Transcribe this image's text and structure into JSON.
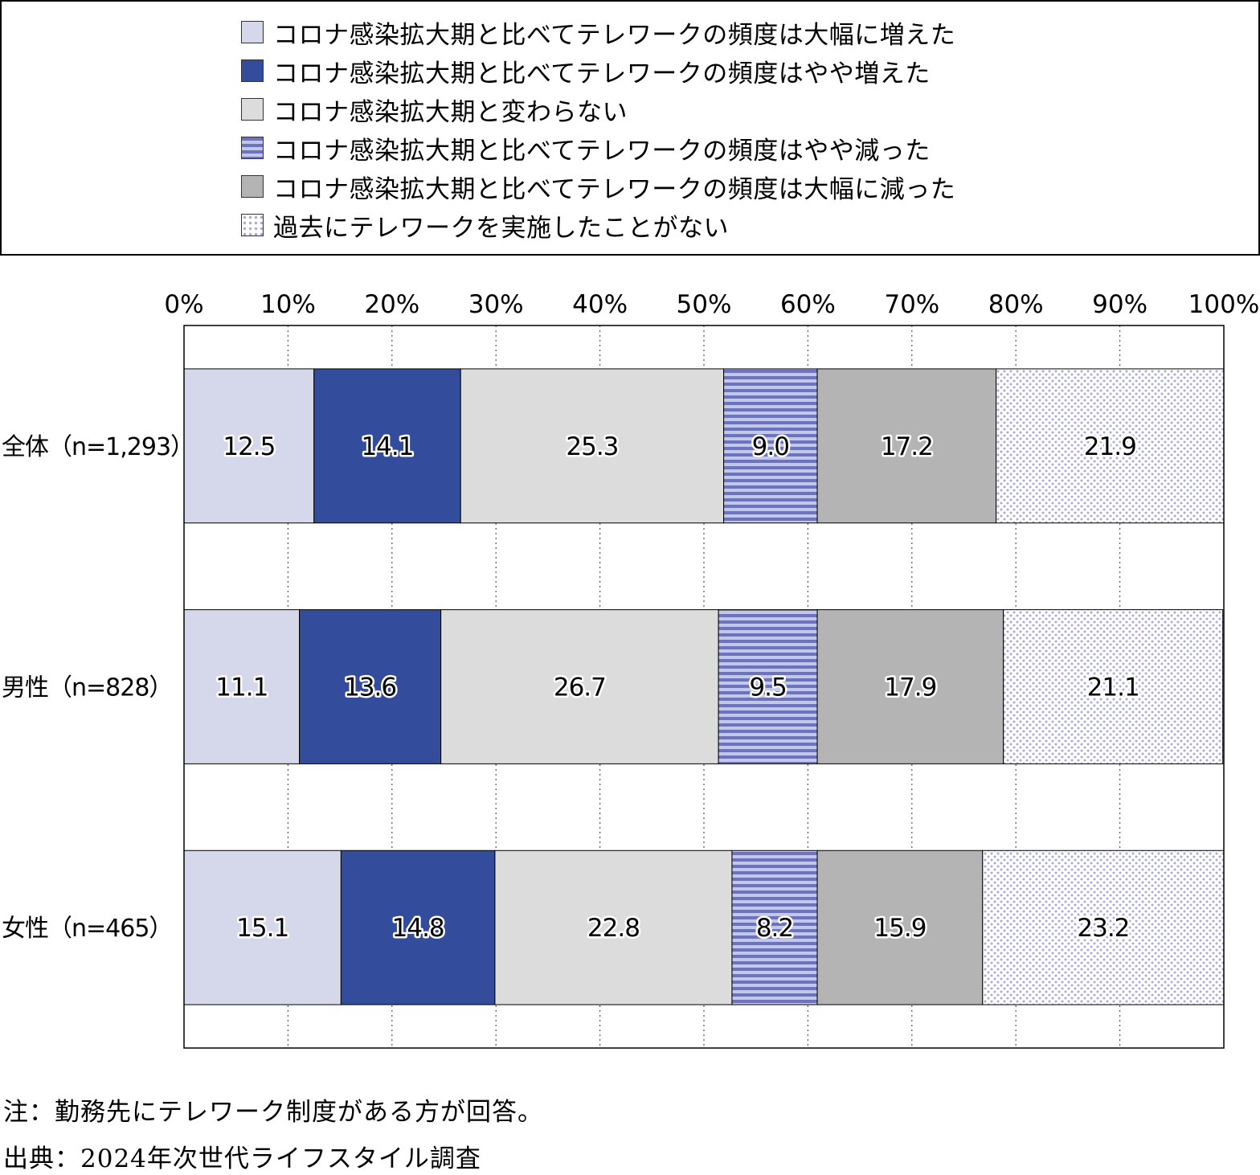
{
  "chart_data": {
    "type": "bar",
    "orientation": "horizontal",
    "stacked": true,
    "percent_stacked": true,
    "categories": [
      "全体（n=1,293）",
      "男性（n=828）",
      "女性（n=465）"
    ],
    "series": [
      {
        "name": "コロナ感染拡大期と比べてテレワークの頻度は大幅に増えた",
        "values": [
          12.5,
          11.1,
          15.1
        ],
        "color": "#d5d7eb",
        "pattern": "solid"
      },
      {
        "name": "コロナ感染拡大期と比べてテレワークの頻度はやや増えた",
        "values": [
          14.1,
          13.6,
          14.8
        ],
        "color": "#334c9b",
        "pattern": "solid"
      },
      {
        "name": "コロナ感染拡大期と変わらない",
        "values": [
          25.3,
          26.7,
          22.8
        ],
        "color": "#dcdcdc",
        "pattern": "solid"
      },
      {
        "name": "コロナ感染拡大期と比べてテレワークの頻度はやや減った",
        "values": [
          9.0,
          9.5,
          8.2
        ],
        "color": "#6b74bd",
        "pattern": "horizontal-stripes"
      },
      {
        "name": "コロナ感染拡大期と比べてテレワークの頻度は大幅に減った",
        "values": [
          17.2,
          17.9,
          15.9
        ],
        "color": "#b4b4b4",
        "pattern": "solid"
      },
      {
        "name": "過去にテレワークを実施したことがない",
        "values": [
          21.9,
          21.1,
          23.2
        ],
        "color": "#a6a9dc",
        "pattern": "dots"
      }
    ],
    "value_labels": [
      [
        "12.5",
        "14.1",
        "25.3",
        "9.0",
        "17.2",
        "21.9"
      ],
      [
        "11.1",
        "13.6",
        "26.7",
        "9.5",
        "17.9",
        "21.1"
      ],
      [
        "15.1",
        "14.8",
        "22.8",
        "8.2",
        "15.9",
        "23.2"
      ]
    ],
    "x_ticks": [
      "0%",
      "10%",
      "20%",
      "30%",
      "40%",
      "50%",
      "60%",
      "70%",
      "80%",
      "90%",
      "100%"
    ],
    "xlim": [
      0,
      100
    ],
    "grid": "vertical-dotted",
    "legend_position": "top"
  },
  "notes": {
    "note": "注：勤務先にテレワーク制度がある方が回答。",
    "source": "出典：2024年次世代ライフスタイル調査"
  }
}
